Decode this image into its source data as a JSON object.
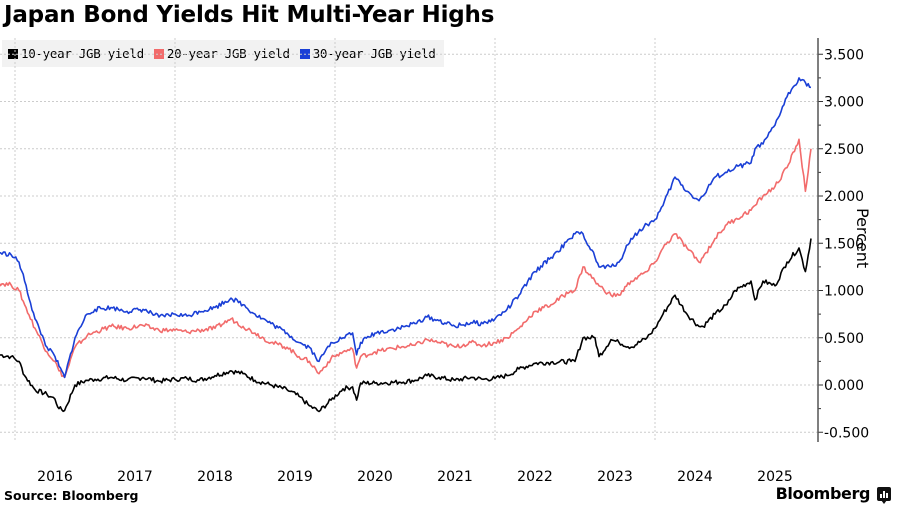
{
  "title": "Japan Bond Yields Hit Multi-Year Highs",
  "source": "Source: Bloomberg",
  "brand": "Bloomberg",
  "colors": {
    "y10": "#000000",
    "y20": "#f26b6b",
    "y30": "#1a3fd6",
    "grid": "#cccccc",
    "legend_bg": "#f2f2f2"
  },
  "legend": [
    {
      "label": "10-year JGB yield",
      "color": "#000000"
    },
    {
      "label": "20-year JGB yield",
      "color": "#f26b6b"
    },
    {
      "label": "30-year JGB yield",
      "color": "#1a3fd6"
    }
  ],
  "chart_data": {
    "type": "line",
    "title": "Japan Bond Yields Hit Multi-Year Highs",
    "xlabel": "",
    "ylabel": "Percent",
    "ylim": [
      -0.6,
      3.6
    ],
    "xlim": [
      2015.8,
      2025.95
    ],
    "y_ticks": [
      -0.5,
      0.0,
      0.5,
      1.0,
      1.5,
      2.0,
      2.5,
      3.0,
      3.5
    ],
    "y_tick_labels": [
      "-0.500",
      "0.000",
      "0.500",
      "1.000",
      "1.500",
      "2.000",
      "2.500",
      "3.000",
      "3.500"
    ],
    "x_ticks": [
      2016.5,
      2017.5,
      2018.5,
      2019.5,
      2020.5,
      2021.5,
      2022.5,
      2023.5,
      2024.5,
      2025.5
    ],
    "x_tick_labels": [
      "2016",
      "2017",
      "2018",
      "2019",
      "2020",
      "2021",
      "2022",
      "2023",
      "2024",
      "2025"
    ],
    "x_gridlines": [
      2016,
      2018,
      2020,
      2022,
      2024
    ],
    "grid": true,
    "legend_position": "top-left",
    "y_axis_side": "right",
    "series": [
      {
        "name": "10-year JGB yield",
        "x": [
          2015.8,
          2015.95,
          2016.05,
          2016.12,
          2016.25,
          2016.4,
          2016.5,
          2016.55,
          2016.62,
          2016.75,
          2016.9,
          2017.0,
          2017.2,
          2017.4,
          2017.6,
          2017.8,
          2018.0,
          2018.15,
          2018.3,
          2018.5,
          2018.7,
          2018.85,
          2019.0,
          2019.2,
          2019.4,
          2019.55,
          2019.68,
          2019.8,
          2019.95,
          2020.1,
          2020.22,
          2020.27,
          2020.32,
          2020.5,
          2020.8,
          2021.0,
          2021.15,
          2021.3,
          2021.5,
          2021.7,
          2021.85,
          2022.0,
          2022.15,
          2022.3,
          2022.5,
          2022.7,
          2022.95,
          2023.0,
          2023.1,
          2023.25,
          2023.3,
          2023.45,
          2023.55,
          2023.7,
          2023.9,
          2024.0,
          2024.1,
          2024.25,
          2024.4,
          2024.55,
          2024.6,
          2024.75,
          2024.9,
          2025.0,
          2025.2,
          2025.25,
          2025.35,
          2025.5,
          2025.65,
          2025.8,
          2025.88,
          2025.95
        ],
        "values": [
          0.32,
          0.3,
          0.25,
          0.1,
          -0.05,
          -0.1,
          -0.15,
          -0.25,
          -0.27,
          0.0,
          0.05,
          0.06,
          0.08,
          0.05,
          0.08,
          0.04,
          0.06,
          0.07,
          0.05,
          0.1,
          0.15,
          0.12,
          0.05,
          0.0,
          -0.05,
          -0.12,
          -0.22,
          -0.28,
          -0.16,
          -0.04,
          -0.02,
          -0.16,
          0.02,
          0.02,
          0.03,
          0.05,
          0.1,
          0.08,
          0.05,
          0.08,
          0.06,
          0.07,
          0.1,
          0.17,
          0.23,
          0.24,
          0.25,
          0.25,
          0.5,
          0.5,
          0.3,
          0.48,
          0.45,
          0.4,
          0.5,
          0.6,
          0.75,
          0.95,
          0.75,
          0.62,
          0.62,
          0.75,
          0.85,
          1.0,
          1.1,
          0.9,
          1.1,
          1.05,
          1.3,
          1.45,
          1.2,
          1.55
        ]
      },
      {
        "name": "20-year JGB yield",
        "x": [
          2015.8,
          2015.95,
          2016.05,
          2016.12,
          2016.25,
          2016.4,
          2016.5,
          2016.55,
          2016.62,
          2016.75,
          2016.9,
          2017.0,
          2017.2,
          2017.4,
          2017.6,
          2017.8,
          2018.0,
          2018.15,
          2018.3,
          2018.5,
          2018.7,
          2018.85,
          2019.0,
          2019.2,
          2019.4,
          2019.55,
          2019.68,
          2019.8,
          2019.95,
          2020.1,
          2020.22,
          2020.27,
          2020.32,
          2020.5,
          2020.8,
          2021.0,
          2021.15,
          2021.3,
          2021.5,
          2021.7,
          2021.85,
          2022.0,
          2022.15,
          2022.3,
          2022.5,
          2022.7,
          2022.95,
          2023.0,
          2023.1,
          2023.25,
          2023.3,
          2023.45,
          2023.55,
          2023.7,
          2023.9,
          2024.0,
          2024.1,
          2024.25,
          2024.4,
          2024.55,
          2024.6,
          2024.75,
          2024.9,
          2025.0,
          2025.2,
          2025.25,
          2025.35,
          2025.5,
          2025.65,
          2025.8,
          2025.88,
          2025.95
        ],
        "values": [
          1.08,
          1.06,
          1.0,
          0.85,
          0.6,
          0.35,
          0.25,
          0.15,
          0.08,
          0.4,
          0.52,
          0.56,
          0.62,
          0.6,
          0.63,
          0.58,
          0.58,
          0.56,
          0.58,
          0.6,
          0.7,
          0.62,
          0.55,
          0.45,
          0.4,
          0.3,
          0.25,
          0.12,
          0.28,
          0.35,
          0.38,
          0.18,
          0.3,
          0.35,
          0.4,
          0.42,
          0.48,
          0.45,
          0.4,
          0.45,
          0.42,
          0.45,
          0.5,
          0.6,
          0.78,
          0.85,
          1.0,
          1.0,
          1.25,
          1.1,
          1.05,
          0.95,
          0.95,
          1.1,
          1.2,
          1.3,
          1.45,
          1.6,
          1.45,
          1.3,
          1.35,
          1.55,
          1.7,
          1.75,
          1.85,
          1.9,
          2.0,
          2.1,
          2.3,
          2.6,
          2.05,
          2.5
        ]
      },
      {
        "name": "30-year JGB yield",
        "x": [
          2015.8,
          2015.95,
          2016.05,
          2016.12,
          2016.25,
          2016.4,
          2016.5,
          2016.55,
          2016.62,
          2016.75,
          2016.9,
          2017.0,
          2017.2,
          2017.4,
          2017.6,
          2017.8,
          2018.0,
          2018.15,
          2018.3,
          2018.5,
          2018.7,
          2018.85,
          2019.0,
          2019.2,
          2019.4,
          2019.55,
          2019.68,
          2019.8,
          2019.95,
          2020.1,
          2020.22,
          2020.27,
          2020.32,
          2020.5,
          2020.8,
          2021.0,
          2021.15,
          2021.3,
          2021.5,
          2021.7,
          2021.85,
          2022.0,
          2022.15,
          2022.3,
          2022.5,
          2022.7,
          2022.95,
          2023.0,
          2023.1,
          2023.25,
          2023.3,
          2023.45,
          2023.55,
          2023.7,
          2023.9,
          2024.0,
          2024.1,
          2024.25,
          2024.4,
          2024.55,
          2024.6,
          2024.75,
          2024.9,
          2025.0,
          2025.2,
          2025.25,
          2025.35,
          2025.5,
          2025.65,
          2025.8,
          2025.88,
          2025.95
        ],
        "values": [
          1.4,
          1.38,
          1.3,
          1.1,
          0.7,
          0.4,
          0.3,
          0.2,
          0.08,
          0.5,
          0.75,
          0.8,
          0.82,
          0.78,
          0.8,
          0.72,
          0.75,
          0.73,
          0.78,
          0.82,
          0.92,
          0.85,
          0.75,
          0.65,
          0.55,
          0.45,
          0.4,
          0.25,
          0.45,
          0.5,
          0.55,
          0.32,
          0.45,
          0.55,
          0.6,
          0.65,
          0.72,
          0.68,
          0.62,
          0.66,
          0.65,
          0.7,
          0.8,
          0.95,
          1.2,
          1.35,
          1.55,
          1.6,
          1.6,
          1.35,
          1.25,
          1.25,
          1.3,
          1.55,
          1.7,
          1.75,
          1.9,
          2.2,
          2.05,
          1.95,
          2.0,
          2.2,
          2.25,
          2.3,
          2.35,
          2.5,
          2.55,
          2.75,
          3.05,
          3.25,
          3.2,
          3.15
        ]
      }
    ]
  }
}
